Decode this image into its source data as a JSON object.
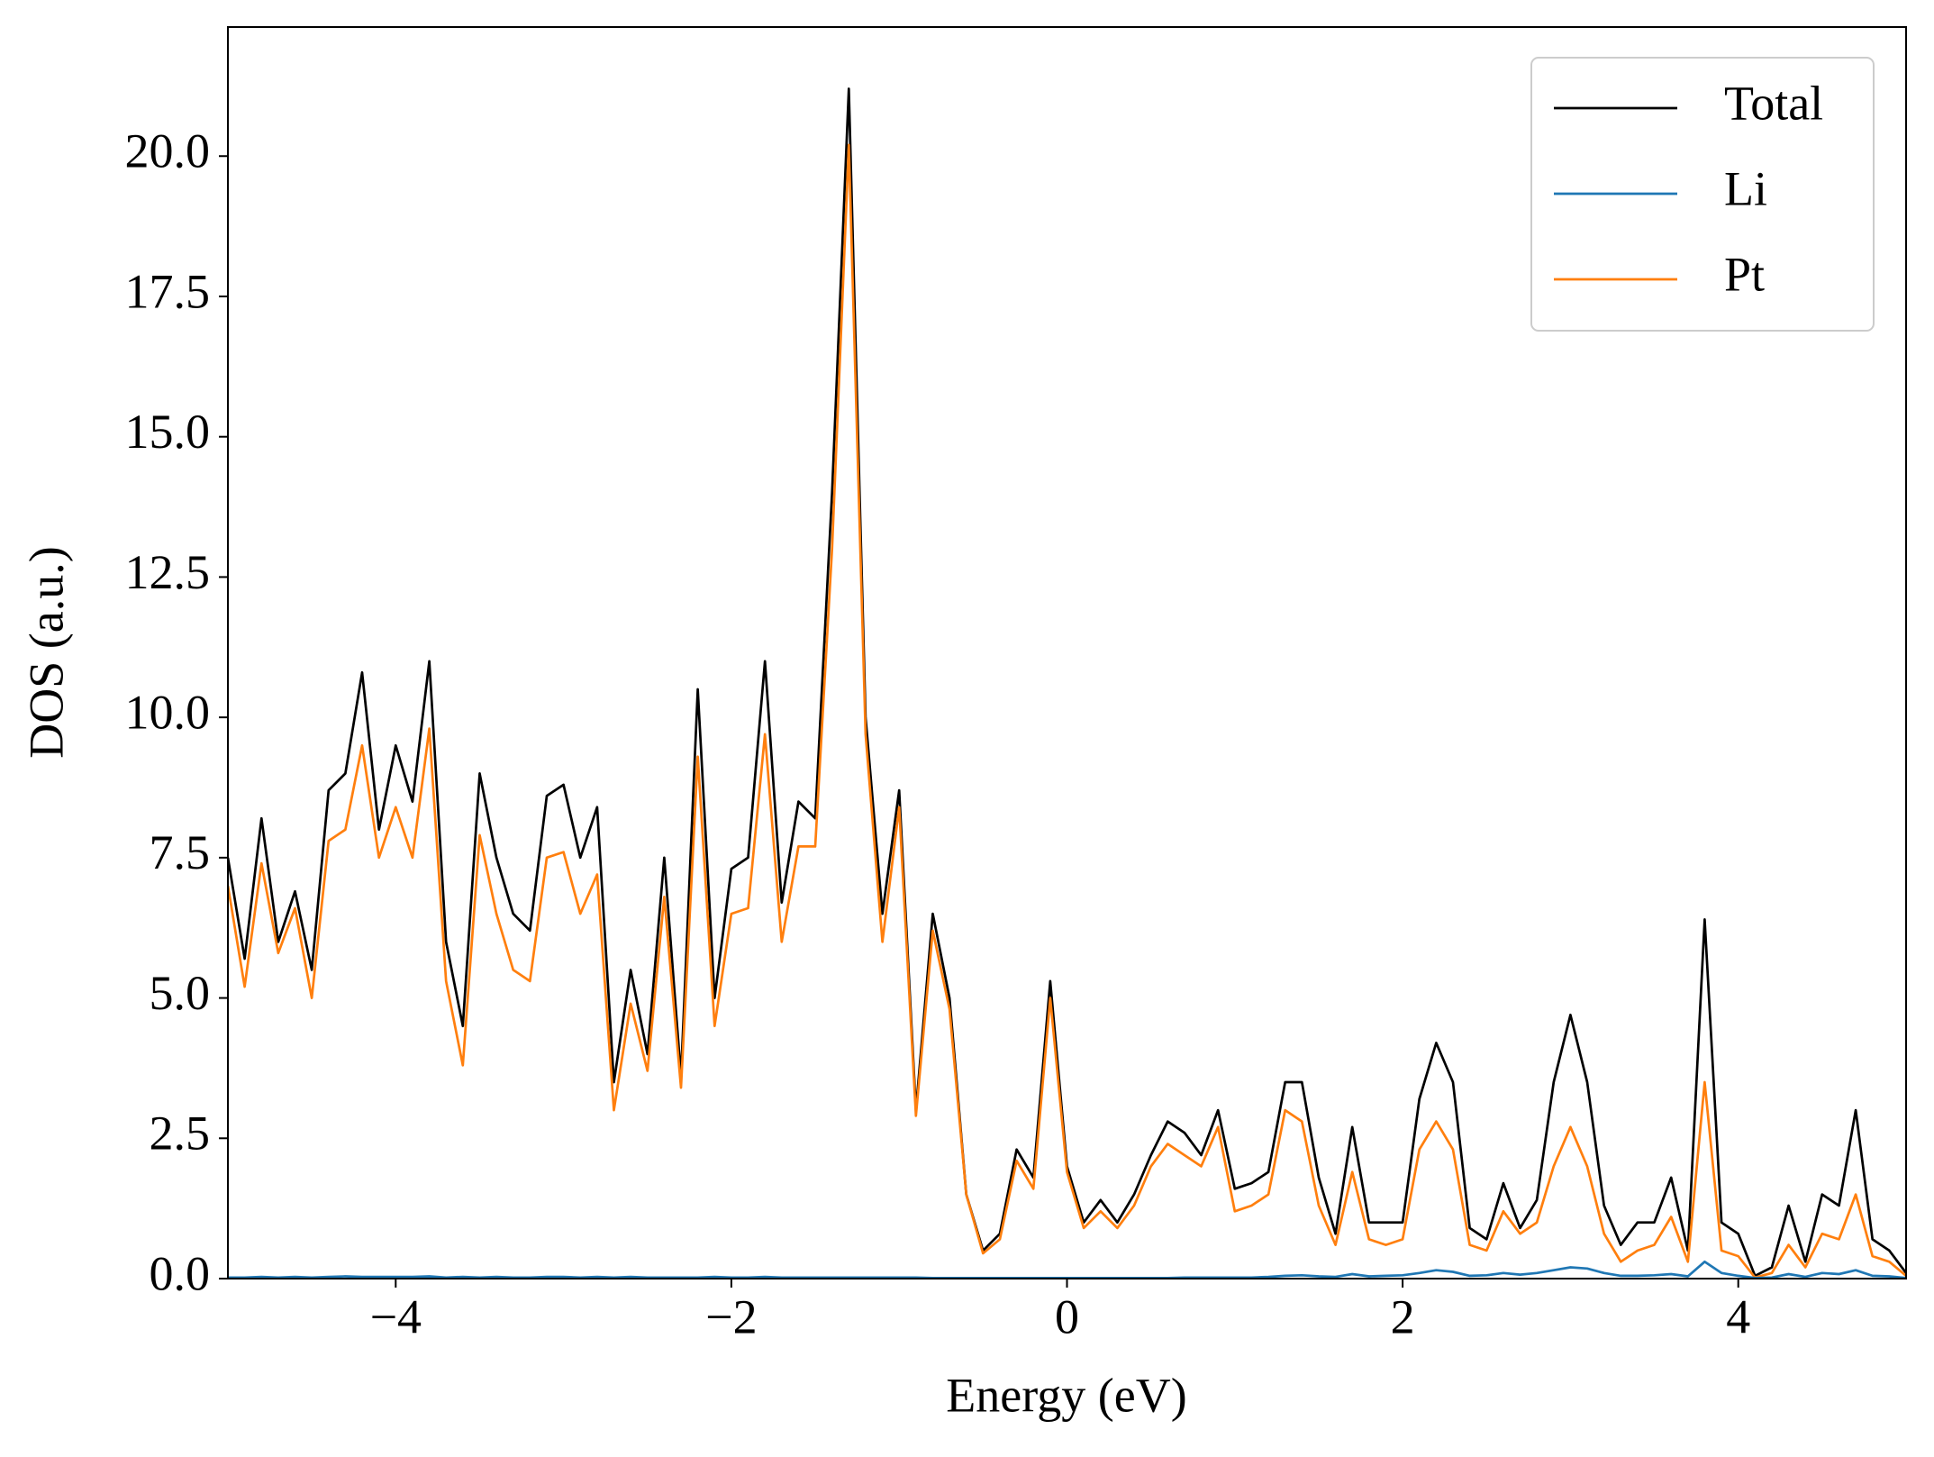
{
  "chart_data": {
    "type": "line",
    "xlabel": "Energy (eV)",
    "ylabel": "DOS (a.u.)",
    "x": [
      -5.0,
      -4.9,
      -4.8,
      -4.7,
      -4.6,
      -4.5,
      -4.4,
      -4.3,
      -4.2,
      -4.1,
      -4.0,
      -3.9,
      -3.8,
      -3.7,
      -3.6,
      -3.5,
      -3.4,
      -3.3,
      -3.2,
      -3.1,
      -3.0,
      -2.9,
      -2.8,
      -2.7,
      -2.6,
      -2.5,
      -2.4,
      -2.3,
      -2.2,
      -2.1,
      -2.0,
      -1.9,
      -1.8,
      -1.7,
      -1.6,
      -1.5,
      -1.4,
      -1.3,
      -1.2,
      -1.1,
      -1.0,
      -0.9,
      -0.8,
      -0.7,
      -0.6,
      -0.5,
      -0.4,
      -0.3,
      -0.2,
      -0.1,
      0.0,
      0.1,
      0.2,
      0.3,
      0.4,
      0.5,
      0.6,
      0.7,
      0.8,
      0.9,
      1.0,
      1.1,
      1.2,
      1.3,
      1.4,
      1.5,
      1.6,
      1.7,
      1.8,
      1.9,
      2.0,
      2.1,
      2.2,
      2.3,
      2.4,
      2.5,
      2.6,
      2.7,
      2.8,
      2.9,
      3.0,
      3.1,
      3.2,
      3.3,
      3.4,
      3.5,
      3.6,
      3.7,
      3.8,
      3.9,
      4.0,
      4.1,
      4.2,
      4.3,
      4.4,
      4.5,
      4.6,
      4.7,
      4.8,
      4.9,
      5.0
    ],
    "series": [
      {
        "name": "Total",
        "color": "#000000",
        "values": [
          7.5,
          5.7,
          8.2,
          6.0,
          6.9,
          5.5,
          8.7,
          9.0,
          10.8,
          8.0,
          9.5,
          8.5,
          11.0,
          6.0,
          4.5,
          9.0,
          7.5,
          6.5,
          6.2,
          8.6,
          8.8,
          7.5,
          8.4,
          3.5,
          5.5,
          4.0,
          7.5,
          3.6,
          10.5,
          5.0,
          7.3,
          7.5,
          11.0,
          6.7,
          8.5,
          8.2,
          14.0,
          21.2,
          10.0,
          6.5,
          8.7,
          3.0,
          6.5,
          5.0,
          1.5,
          0.5,
          0.8,
          2.3,
          1.8,
          5.3,
          2.0,
          1.0,
          1.4,
          1.0,
          1.5,
          2.2,
          2.8,
          2.6,
          2.2,
          3.0,
          1.6,
          1.7,
          1.9,
          3.5,
          3.5,
          1.8,
          0.8,
          2.7,
          1.0,
          1.0,
          1.0,
          3.2,
          4.2,
          3.5,
          0.9,
          0.7,
          1.7,
          0.9,
          1.4,
          3.5,
          4.7,
          3.5,
          1.3,
          0.6,
          1.0,
          1.0,
          1.8,
          0.5,
          6.4,
          1.0,
          0.8,
          0.05,
          0.2,
          1.3,
          0.3,
          1.5,
          1.3,
          3.0,
          0.7,
          0.5,
          0.1
        ]
      },
      {
        "name": "Li",
        "color": "#1f77b4",
        "values": [
          0.02,
          0.02,
          0.03,
          0.02,
          0.03,
          0.02,
          0.03,
          0.04,
          0.03,
          0.03,
          0.03,
          0.03,
          0.04,
          0.02,
          0.03,
          0.02,
          0.03,
          0.02,
          0.02,
          0.03,
          0.03,
          0.02,
          0.03,
          0.02,
          0.03,
          0.02,
          0.02,
          0.02,
          0.02,
          0.03,
          0.02,
          0.02,
          0.03,
          0.02,
          0.02,
          0.02,
          0.02,
          0.02,
          0.02,
          0.02,
          0.02,
          0.02,
          0.01,
          0.01,
          0.01,
          0.01,
          0.01,
          0.01,
          0.01,
          0.01,
          0.01,
          0.01,
          0.01,
          0.01,
          0.01,
          0.01,
          0.01,
          0.02,
          0.02,
          0.02,
          0.02,
          0.02,
          0.03,
          0.05,
          0.06,
          0.04,
          0.03,
          0.08,
          0.04,
          0.05,
          0.06,
          0.1,
          0.15,
          0.12,
          0.05,
          0.06,
          0.1,
          0.07,
          0.1,
          0.15,
          0.2,
          0.18,
          0.1,
          0.05,
          0.05,
          0.06,
          0.08,
          0.04,
          0.3,
          0.1,
          0.05,
          0.01,
          0.02,
          0.08,
          0.03,
          0.1,
          0.08,
          0.15,
          0.05,
          0.04,
          0.01
        ]
      },
      {
        "name": "Pt",
        "color": "#ff7f0e",
        "values": [
          7.0,
          5.2,
          7.4,
          5.8,
          6.6,
          5.0,
          7.8,
          8.0,
          9.5,
          7.5,
          8.4,
          7.5,
          9.8,
          5.3,
          3.8,
          7.9,
          6.5,
          5.5,
          5.3,
          7.5,
          7.6,
          6.5,
          7.2,
          3.0,
          4.9,
          3.7,
          6.8,
          3.4,
          9.3,
          4.5,
          6.5,
          6.6,
          9.7,
          6.0,
          7.7,
          7.7,
          13.0,
          20.2,
          9.7,
          6.0,
          8.4,
          2.9,
          6.2,
          4.8,
          1.5,
          0.45,
          0.7,
          2.1,
          1.6,
          5.0,
          1.9,
          0.9,
          1.2,
          0.9,
          1.3,
          2.0,
          2.4,
          2.2,
          2.0,
          2.7,
          1.2,
          1.3,
          1.5,
          3.0,
          2.8,
          1.3,
          0.6,
          1.9,
          0.7,
          0.6,
          0.7,
          2.3,
          2.8,
          2.3,
          0.6,
          0.5,
          1.2,
          0.8,
          1.0,
          2.0,
          2.7,
          2.0,
          0.8,
          0.3,
          0.5,
          0.6,
          1.1,
          0.3,
          3.5,
          0.5,
          0.4,
          0.02,
          0.1,
          0.6,
          0.2,
          0.8,
          0.7,
          1.5,
          0.4,
          0.3,
          0.05
        ]
      }
    ],
    "xlim": [
      -5,
      5
    ],
    "ylim": [
      0,
      22.3
    ],
    "xticks": [
      {
        "value": -4,
        "label": "−4"
      },
      {
        "value": -2,
        "label": "−2"
      },
      0,
      2,
      4
    ],
    "yticks": [
      {
        "value": 0,
        "label": "0.0"
      },
      2.5,
      {
        "value": 5,
        "label": "5.0"
      },
      7.5,
      {
        "value": 10,
        "label": "10.0"
      },
      12.5,
      {
        "value": 15,
        "label": "15.0"
      },
      17.5,
      {
        "value": 20,
        "label": "20.0"
      }
    ],
    "legend": "upper right",
    "grid": false
  }
}
